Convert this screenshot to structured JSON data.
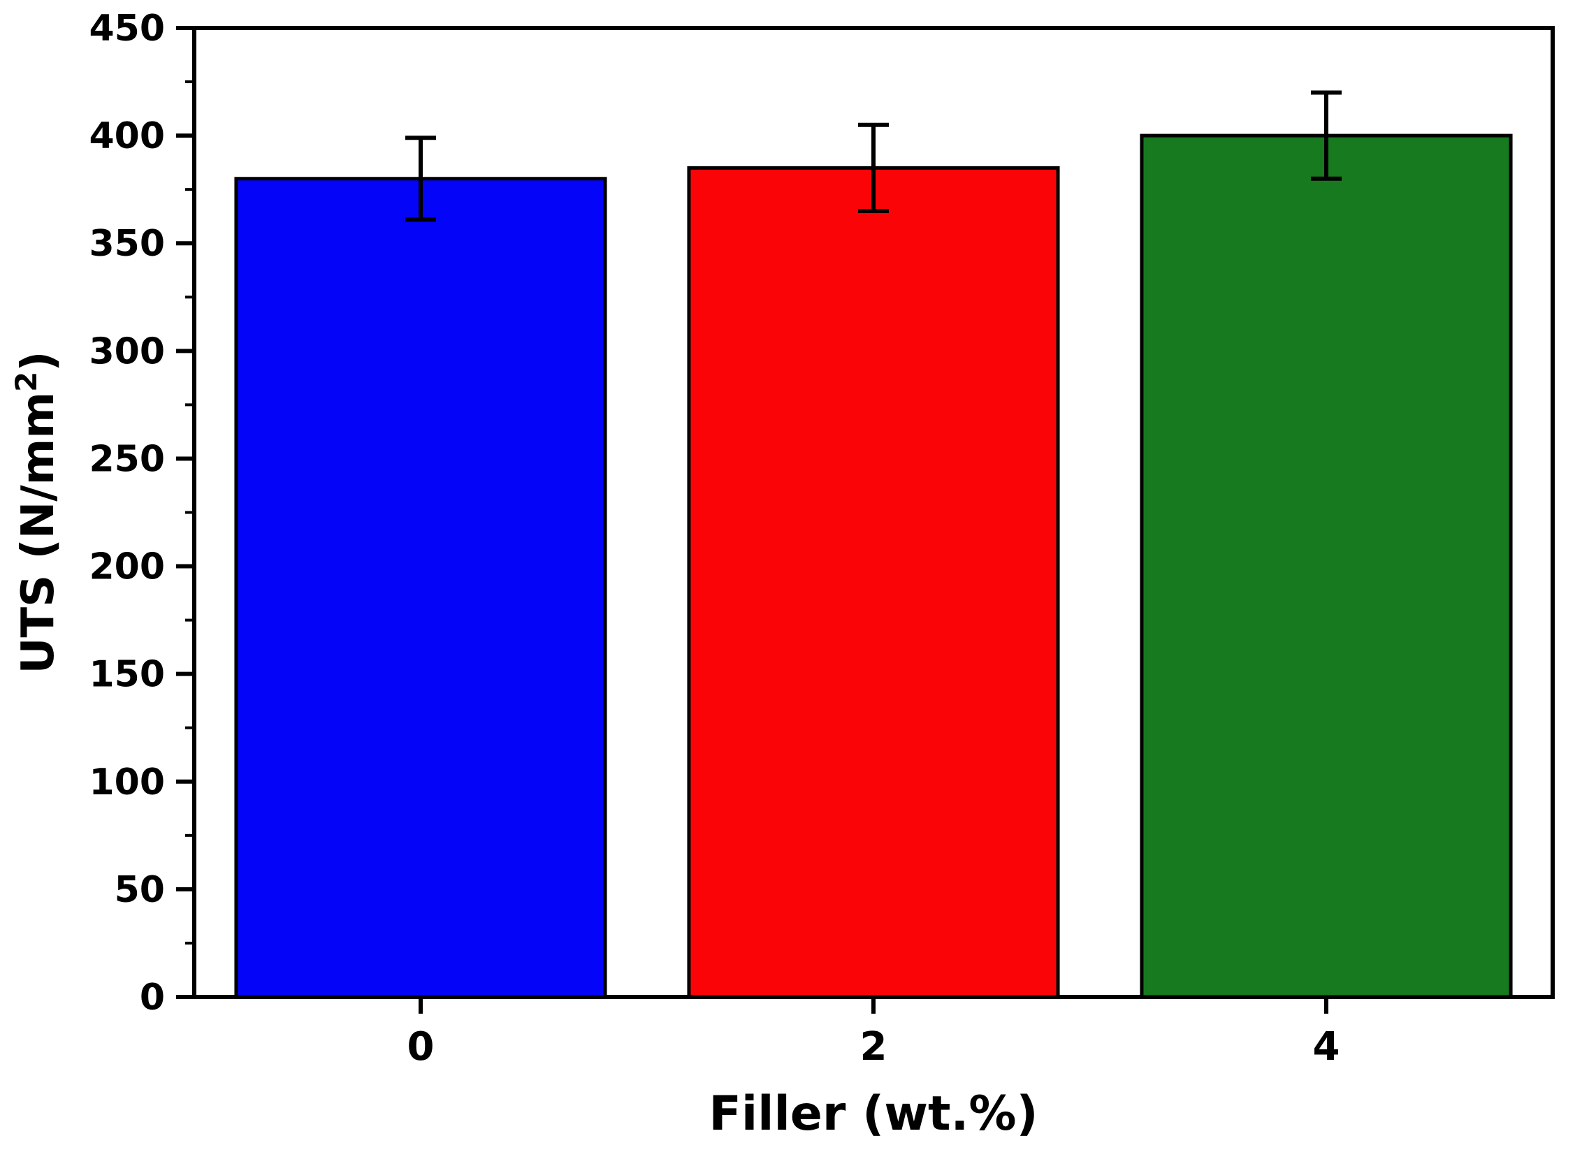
{
  "figure": {
    "kind": "bar-chart-figure",
    "background": "#ffffff"
  },
  "chart_data": {
    "type": "bar",
    "title": "",
    "xlabel": "Filler (wt.%)",
    "ylabel": "UTS (N/mm²)",
    "ylabel_parts": {
      "main": "UTS (N/mm",
      "sup": "2",
      "end": ")"
    },
    "categories": [
      "0",
      "2",
      "4"
    ],
    "series": [
      {
        "name": "UTS",
        "values": [
          380,
          385,
          400
        ],
        "errors_plus": [
          19,
          20,
          20
        ],
        "errors_minus": [
          19,
          20,
          20
        ]
      }
    ],
    "bar_colors": [
      "#0404f8",
      "#fb0408",
      "#177a1e"
    ],
    "bar_edge_color": "#000000",
    "error_bar_color": "#000000",
    "ylim": [
      0,
      450
    ],
    "yticks": [
      0,
      50,
      100,
      150,
      200,
      250,
      300,
      350,
      400,
      450
    ],
    "ytick_minor_step": 25,
    "grid": false,
    "legend": "none",
    "frame": true,
    "axis_color": "#000000"
  }
}
